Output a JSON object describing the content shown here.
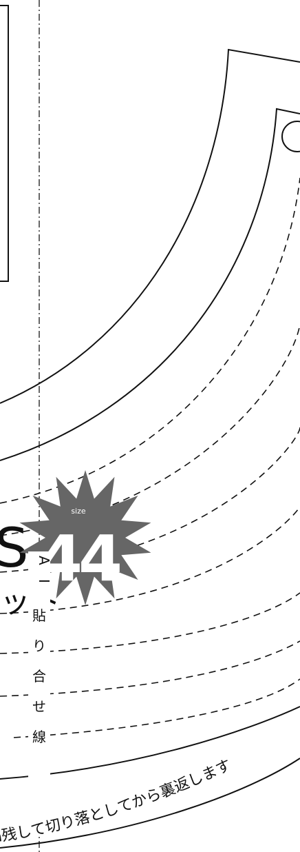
{
  "pattern": {
    "size_badge": {
      "label": "size",
      "value": "44",
      "color": "#666666"
    },
    "fold_line_label": {
      "letters": [
        "A",
        "I"
      ],
      "text": "貼り合せ線"
    },
    "instruction": "n残して切り落としてから裏返します",
    "partial_text_top": "ット",
    "partial_text_left": "S"
  }
}
